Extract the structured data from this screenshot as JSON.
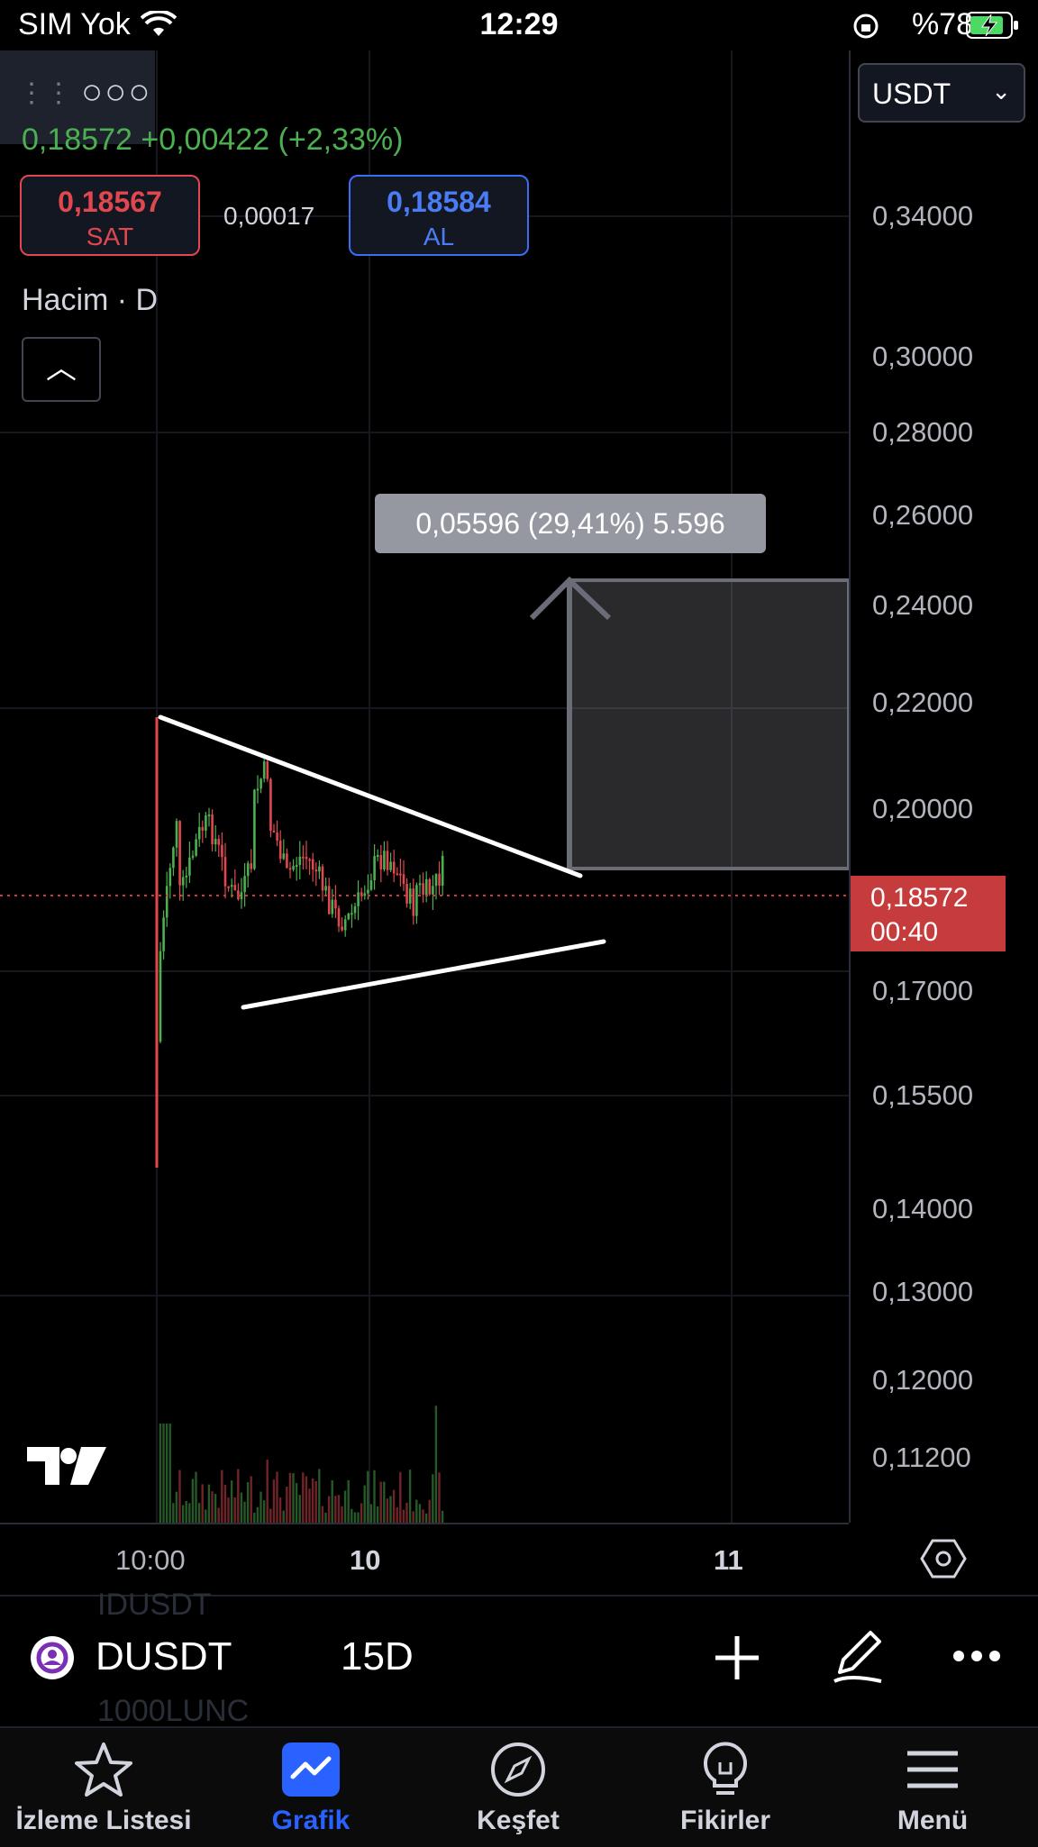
{
  "status_bar": {
    "carrier": "SIM Yok",
    "time": "12:29",
    "battery": "%78"
  },
  "header": {
    "currency": "USDT",
    "change": "0,18572 +0,00422 (+2,33%)",
    "sell": {
      "value": "0,18567",
      "label": "SAT"
    },
    "spread": "0,00017",
    "buy": {
      "value": "0,18584",
      "label": "AL"
    },
    "volume_label": "Hacim · D"
  },
  "price_axis": {
    "ticks": [
      "0,34000",
      "0,30000",
      "0,28000",
      "0,26000",
      "0,24000",
      "0,22000",
      "0,20000",
      "0,17000",
      "0,15500",
      "0,14000",
      "0,13000",
      "0,12000",
      "0,11200"
    ],
    "last_price": "0,18572",
    "countdown": "00:40"
  },
  "measure": {
    "label": "0,05596 (29,41%) 5.596"
  },
  "time_axis": {
    "labels": [
      "10:00",
      "10",
      "11"
    ]
  },
  "symbol_bar": {
    "symbol": "DUSDT",
    "interval": "15D",
    "ghost_above": "IDUSDT",
    "ghost_below": "1000LUNC"
  },
  "nav": [
    {
      "label": "İzleme Listesi",
      "icon": "star-icon"
    },
    {
      "label": "Grafik",
      "icon": "chart-icon"
    },
    {
      "label": "Keşfet",
      "icon": "compass-icon"
    },
    {
      "label": "Fikirler",
      "icon": "lightbulb-icon"
    },
    {
      "label": "Menü",
      "icon": "menu-icon"
    }
  ],
  "colors": {
    "up": "#4caf50",
    "down": "#e0474f",
    "accent": "#2962ff"
  }
}
